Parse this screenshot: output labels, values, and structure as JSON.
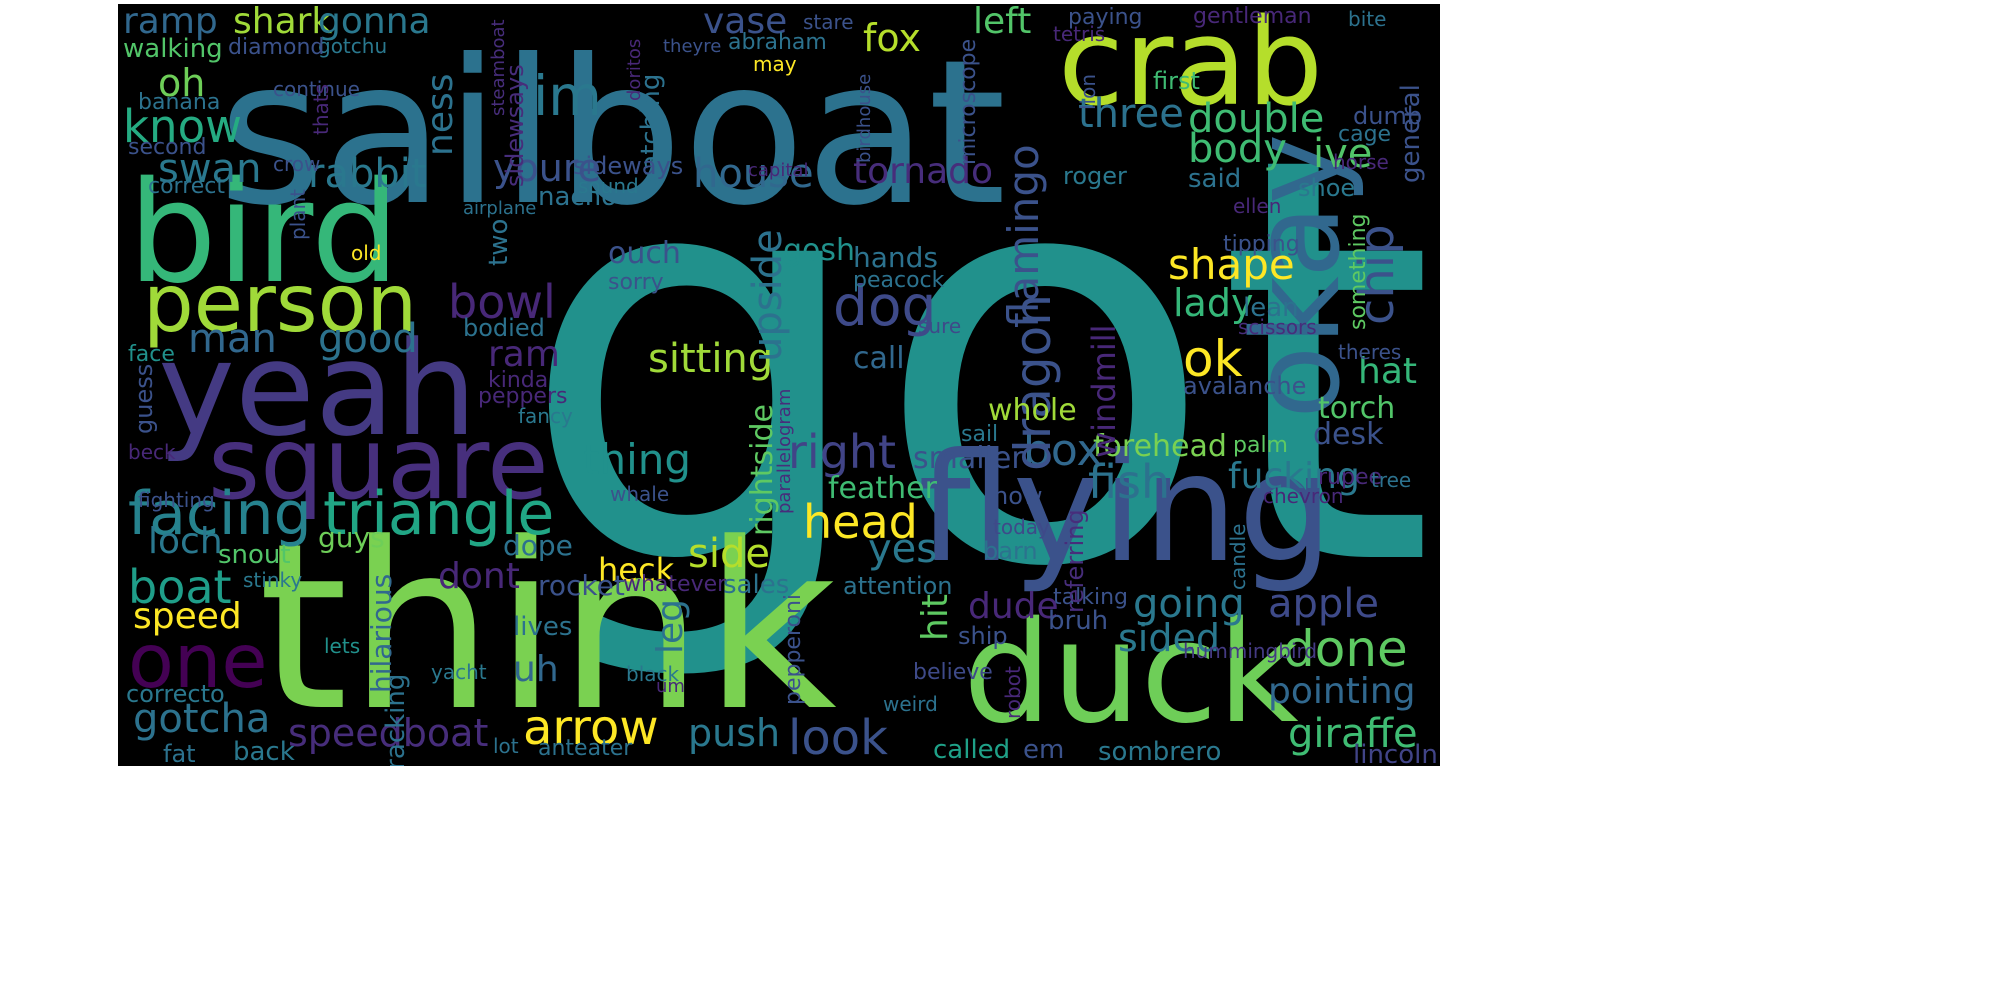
{
  "cloud": {
    "background": "#000000",
    "colormap": "viridis",
    "words": [
      {
        "t": "got",
        "c": "#21918c"
      },
      {
        "t": "sailboat",
        "c": "#2c728e"
      },
      {
        "t": "think",
        "c": "#7ad151"
      },
      {
        "t": "bird",
        "c": "#35b779"
      },
      {
        "t": "yeah",
        "c": "#443a83"
      },
      {
        "t": "flying",
        "c": "#3b528b"
      },
      {
        "t": "duck",
        "c": "#6ece58"
      },
      {
        "t": "crab",
        "c": "#b5de2b"
      },
      {
        "t": "okay",
        "c": "#31688e"
      },
      {
        "t": "square",
        "c": "#472f7d"
      },
      {
        "t": "person",
        "c": "#a0da39"
      },
      {
        "t": "one",
        "c": "#440154"
      },
      {
        "t": "facing",
        "c": "#26828e"
      },
      {
        "t": "triangle",
        "c": "#21a685"
      },
      {
        "t": "arrow",
        "c": "#fde725"
      },
      {
        "t": "boat",
        "c": "#1f9e89"
      },
      {
        "t": "gotcha",
        "c": "#2c728e"
      },
      {
        "t": "speedboat",
        "c": "#472d7b"
      },
      {
        "t": "look",
        "c": "#3b528b"
      },
      {
        "t": "push",
        "c": "#2a788e"
      },
      {
        "t": "done",
        "c": "#5ec962"
      },
      {
        "t": "pointing",
        "c": "#31688e"
      },
      {
        "t": "giraffe",
        "c": "#3fbc73"
      },
      {
        "t": "speed",
        "c": "#fde725"
      },
      {
        "t": "head",
        "c": "#fde725"
      },
      {
        "t": "side",
        "c": "#b5de2b"
      },
      {
        "t": "fish",
        "c": "#2c728e"
      },
      {
        "t": "fucking",
        "c": "#2a788e"
      },
      {
        "t": "going",
        "c": "#2a788e"
      },
      {
        "t": "apple",
        "c": "#3e4a89"
      },
      {
        "t": "sided",
        "c": "#2a788e"
      },
      {
        "t": "right",
        "c": "#414487"
      },
      {
        "t": "box",
        "c": "#31688e"
      },
      {
        "t": "thing",
        "c": "#21918c"
      },
      {
        "t": "dog",
        "c": "#3e4a89"
      },
      {
        "t": "ok",
        "c": "#fde725"
      },
      {
        "t": "shape",
        "c": "#fde725"
      },
      {
        "t": "im",
        "c": "#2a788e"
      },
      {
        "t": "know",
        "c": "#25ab82"
      },
      {
        "t": "sitting",
        "c": "#a0da39"
      },
      {
        "t": "bowl",
        "c": "#482878"
      },
      {
        "t": "good",
        "c": "#2c728e"
      },
      {
        "t": "man",
        "c": "#31688e"
      },
      {
        "t": "youre",
        "c": "#3b528b"
      },
      {
        "t": "house",
        "c": "#31688e"
      },
      {
        "t": "tornado",
        "c": "#472d7b"
      },
      {
        "t": "rabbit",
        "c": "#2a788e"
      },
      {
        "t": "swan",
        "c": "#2a788e"
      },
      {
        "t": "three",
        "c": "#2c728e"
      },
      {
        "t": "double",
        "c": "#3fbc73"
      },
      {
        "t": "body",
        "c": "#3fbc73"
      },
      {
        "t": "chip",
        "c": "#3b528b"
      },
      {
        "t": "lady",
        "c": "#35b779"
      },
      {
        "t": "hat",
        "c": "#35b779"
      },
      {
        "t": "vase",
        "c": "#3b528b"
      },
      {
        "t": "fox",
        "c": "#b5de2b"
      },
      {
        "t": "left",
        "c": "#52c569"
      },
      {
        "t": "shark",
        "c": "#a0da39"
      },
      {
        "t": "gonna",
        "c": "#2a788e"
      },
      {
        "t": "ramp",
        "c": "#31688e"
      },
      {
        "t": "oh",
        "c": "#6ece58"
      },
      {
        "t": "ness",
        "c": "#2c728e"
      },
      {
        "t": "dragon",
        "c": "#3b528b"
      },
      {
        "t": "flamingo",
        "c": "#3b528b"
      },
      {
        "t": "upside",
        "c": "#2c728e"
      },
      {
        "t": "yes",
        "c": "#2a788e"
      },
      {
        "t": "loch",
        "c": "#2a788e"
      },
      {
        "t": "dont",
        "c": "#482878"
      },
      {
        "t": "heck",
        "c": "#fde725"
      },
      {
        "t": "uh",
        "c": "#31688e"
      },
      {
        "t": "leg",
        "c": "#2c728e"
      },
      {
        "t": "hit",
        "c": "#5ec962"
      },
      {
        "t": "dude",
        "c": "#482878"
      },
      {
        "t": "ive",
        "c": "#52c569"
      },
      {
        "t": "whole",
        "c": "#a0da39"
      },
      {
        "t": "forehead",
        "c": "#7ad151"
      },
      {
        "t": "smaller",
        "c": "#3b528b"
      },
      {
        "t": "feather",
        "c": "#3fbc73"
      },
      {
        "t": "desk",
        "c": "#3b528b"
      },
      {
        "t": "torch",
        "c": "#52c569"
      },
      {
        "t": "gosh",
        "c": "#21918c"
      },
      {
        "t": "ouch",
        "c": "#3b528b"
      },
      {
        "t": "hands",
        "c": "#2c728e"
      },
      {
        "t": "call",
        "c": "#31688e"
      },
      {
        "t": "ram",
        "c": "#482878"
      },
      {
        "t": "nacho",
        "c": "#2c728e"
      },
      {
        "t": "two",
        "c": "#2c728e"
      },
      {
        "t": "windmill",
        "c": "#482878"
      },
      {
        "t": "rightside",
        "c": "#5ec962"
      },
      {
        "t": "hilarious",
        "c": "#31688e"
      },
      {
        "t": "guys",
        "c": "#6ece58"
      },
      {
        "t": "dope",
        "c": "#2c728e"
      },
      {
        "t": "snout",
        "c": "#52c569"
      },
      {
        "t": "rocket",
        "c": "#3b528b"
      },
      {
        "t": "sales",
        "c": "#2c728e"
      },
      {
        "t": "back",
        "c": "#2a788e"
      },
      {
        "t": "called",
        "c": "#1fa188"
      },
      {
        "t": "em",
        "c": "#3b528b"
      },
      {
        "t": "sombrero",
        "c": "#2a788e"
      },
      {
        "t": "lincoln",
        "c": "#414487"
      },
      {
        "t": "fat",
        "c": "#2c728e"
      },
      {
        "t": "tracking",
        "c": "#2c728e"
      },
      {
        "t": "correcto",
        "c": "#2a788e"
      },
      {
        "t": "lives",
        "c": "#2c728e"
      },
      {
        "t": "ship",
        "c": "#3b528b"
      },
      {
        "t": "bruh",
        "c": "#3b528b"
      },
      {
        "t": "shoe",
        "c": "#2a788e"
      },
      {
        "t": "said",
        "c": "#2c728e"
      },
      {
        "t": "roger",
        "c": "#2a788e"
      },
      {
        "t": "first",
        "c": "#3fbc73"
      },
      {
        "t": "general",
        "c": "#3b528b"
      },
      {
        "t": "dumb",
        "c": "#3b528b"
      },
      {
        "t": "walking",
        "c": "#52c569"
      },
      {
        "t": "banana",
        "c": "#2c728e"
      },
      {
        "t": "second",
        "c": "#3b528b"
      },
      {
        "t": "correct",
        "c": "#2c728e"
      },
      {
        "t": "face",
        "c": "#21918c"
      },
      {
        "t": "guess",
        "c": "#3b528b"
      },
      {
        "t": "beck",
        "c": "#482878"
      },
      {
        "t": "fighting",
        "c": "#3b528b"
      },
      {
        "t": "stinky",
        "c": "#2a788e"
      },
      {
        "t": "lets",
        "c": "#21918c"
      },
      {
        "t": "yacht",
        "c": "#2a788e"
      },
      {
        "t": "black",
        "c": "#2a788e"
      },
      {
        "t": "um",
        "c": "#482878"
      },
      {
        "t": "lot",
        "c": "#2c728e"
      },
      {
        "t": "anteater",
        "c": "#2c728e"
      },
      {
        "t": "pepperoni",
        "c": "#3b528b"
      },
      {
        "t": "attention",
        "c": "#2c728e"
      },
      {
        "t": "whatever",
        "c": "#482878"
      },
      {
        "t": "weird",
        "c": "#2c728e"
      },
      {
        "t": "believe",
        "c": "#3e4a89"
      },
      {
        "t": "robot",
        "c": "#482878"
      },
      {
        "t": "hummingbird",
        "c": "#443a83"
      },
      {
        "t": "talking",
        "c": "#3b528b"
      },
      {
        "t": "referring",
        "c": "#472d7b"
      },
      {
        "t": "now",
        "c": "#3b528b"
      },
      {
        "t": "today",
        "c": "#3e4a89"
      },
      {
        "t": "barn",
        "c": "#2c728e"
      },
      {
        "t": "candle",
        "c": "#2c728e"
      },
      {
        "t": "palm",
        "c": "#5ec962"
      },
      {
        "t": "chevron",
        "c": "#482878"
      },
      {
        "t": "rupee",
        "c": "#482878"
      },
      {
        "t": "tree",
        "c": "#2c728e"
      },
      {
        "t": "sail",
        "c": "#2a788e"
      },
      {
        "t": "avalanche",
        "c": "#3b528b"
      },
      {
        "t": "theres",
        "c": "#3b528b"
      },
      {
        "t": "scissors",
        "c": "#472d7b"
      },
      {
        "t": "lean",
        "c": "#2c728e"
      },
      {
        "t": "something",
        "c": "#5ec962"
      },
      {
        "t": "tipping",
        "c": "#3b528b"
      },
      {
        "t": "ellen",
        "c": "#482878"
      },
      {
        "t": "horse",
        "c": "#482878"
      },
      {
        "t": "cage",
        "c": "#2c728e"
      },
      {
        "t": "peacock",
        "c": "#2c728e"
      },
      {
        "t": "sure",
        "c": "#3e4a89"
      },
      {
        "t": "microscope",
        "c": "#3b528b"
      },
      {
        "t": "lion",
        "c": "#3b528b"
      },
      {
        "t": "birdhouse",
        "c": "#3b528b"
      },
      {
        "t": "capital",
        "c": "#482878"
      },
      {
        "t": "abraham",
        "c": "#2c728e"
      },
      {
        "t": "may",
        "c": "#fde725"
      },
      {
        "t": "stare",
        "c": "#3b528b"
      },
      {
        "t": "paying",
        "c": "#3b528b"
      },
      {
        "t": "gentleman",
        "c": "#482878"
      },
      {
        "t": "bite",
        "c": "#2c728e"
      },
      {
        "t": "tetris",
        "c": "#482878"
      },
      {
        "t": "watching",
        "c": "#2c728e"
      },
      {
        "t": "sideways",
        "c": "#3b528b"
      },
      {
        "t": "sidewsays",
        "c": "#472d7b"
      },
      {
        "t": "sound",
        "c": "#2a788e"
      },
      {
        "t": "doritos",
        "c": "#482878"
      },
      {
        "t": "theyre",
        "c": "#3b528b"
      },
      {
        "t": "gotchu",
        "c": "#2a788e"
      },
      {
        "t": "steamboat",
        "c": "#472d7b"
      },
      {
        "t": "diamond",
        "c": "#3b528b"
      },
      {
        "t": "continue",
        "c": "#3b528b"
      },
      {
        "t": "thats",
        "c": "#482878"
      },
      {
        "t": "crow",
        "c": "#3b528b"
      },
      {
        "t": "plant",
        "c": "#3b528b"
      },
      {
        "t": "airplane",
        "c": "#2c728e"
      },
      {
        "t": "old",
        "c": "#fde725"
      },
      {
        "t": "bodied",
        "c": "#2c728e"
      },
      {
        "t": "sorry",
        "c": "#3b528b"
      },
      {
        "t": "kinda",
        "c": "#482878"
      },
      {
        "t": "peppers",
        "c": "#482878"
      },
      {
        "t": "fancy",
        "c": "#2a788e"
      },
      {
        "t": "whale",
        "c": "#3b528b"
      },
      {
        "t": "parallelogram",
        "c": "#472d7b"
      }
    ]
  }
}
